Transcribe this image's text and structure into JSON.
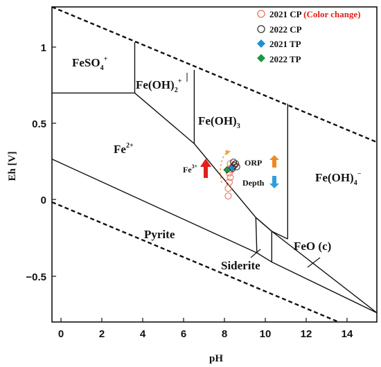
{
  "axes": {
    "xlabel": "pH",
    "ylabel": "Eh [V]",
    "xlim": [
      -0.3,
      15
    ],
    "ylim": [
      -0.8,
      1.25
    ],
    "x_ticks": [
      "0",
      "2",
      "4",
      "6",
      "8",
      "10",
      "12",
      "14"
    ],
    "y_ticks": [
      "1",
      "0.5",
      "0",
      "−0.5"
    ]
  },
  "fields": {
    "feso4": "FeSO",
    "feso4_sub": "4",
    "feso4_sup": "+",
    "feoh2": "Fe(OH)",
    "feoh2_sub": "2",
    "feoh2_sup": "+",
    "fe2": "Fe",
    "fe2_sup": "2+",
    "feoh3": "Fe(OH)",
    "feoh3_sub": "3",
    "feoh4": "Fe(OH)",
    "feoh4_sub": "4",
    "feoh4_sup": "−",
    "pyrite": "Pyrite",
    "siderite": "Siderite",
    "feo": "FeO (c)",
    "fe3": "Fe",
    "fe3_sup": "3+",
    "orp": "ORP",
    "depth": "Depth"
  },
  "legend": [
    {
      "label": "2021 CP",
      "note": " (Color change)",
      "marker": "circle",
      "color": "#e8735a"
    },
    {
      "label": "2022 CP",
      "note": "",
      "marker": "circle",
      "color": "#333333"
    },
    {
      "label": "2021 TP",
      "note": "",
      "marker": "diamond",
      "color": "#1f8fd6"
    },
    {
      "label": "2022 TP",
      "note": "",
      "marker": "diamond",
      "color": "#1a9a3c"
    }
  ],
  "colors": {
    "note": "#e0201a",
    "fe3_arrow": "#e0201a",
    "orp_arrow": "#f08a20",
    "depth_arrow": "#2f9ee0",
    "orange_trail": "#f0a040"
  },
  "chart_data": {
    "type": "scatter",
    "series": [
      {
        "name": "2021 CP",
        "marker": "open-circle",
        "color": "#e8735a",
        "points": [
          [
            8.0,
            0.02
          ],
          [
            8.0,
            0.07
          ],
          [
            8.05,
            0.11
          ],
          [
            8.1,
            0.14
          ],
          [
            8.05,
            0.17
          ],
          [
            8.15,
            0.19
          ],
          [
            8.2,
            0.21
          ],
          [
            8.25,
            0.22
          ],
          [
            8.1,
            0.23
          ]
        ]
      },
      {
        "name": "2022 CP",
        "marker": "open-circle",
        "color": "#333333",
        "points": [
          [
            8.2,
            0.2
          ],
          [
            8.3,
            0.22
          ],
          [
            8.35,
            0.23
          ],
          [
            8.25,
            0.24
          ],
          [
            8.4,
            0.21
          ]
        ]
      },
      {
        "name": "2021 TP",
        "marker": "diamond",
        "color": "#1f8fd6",
        "points": [
          [
            8.15,
            0.2
          ]
        ]
      },
      {
        "name": "2022 TP",
        "marker": "diamond",
        "color": "#1a9a3c",
        "points": [
          [
            7.95,
            0.19
          ]
        ]
      }
    ],
    "boundaries": [
      {
        "id": "water-upper",
        "dashed": true,
        "points": [
          [
            -0.3,
            1.25
          ],
          [
            15,
            0.37
          ]
        ]
      },
      {
        "id": "water-lower",
        "dashed": true,
        "points": [
          [
            -0.3,
            -0.02
          ],
          [
            13.2,
            -0.8
          ]
        ]
      },
      {
        "id": "feso4-top",
        "points": [
          [
            -0.3,
            0.69
          ],
          [
            3.6,
            0.69
          ]
        ]
      },
      {
        "id": "feso4-right",
        "points": [
          [
            3.6,
            0.69
          ],
          [
            3.6,
            1.02
          ]
        ]
      },
      {
        "id": "fe2-upper",
        "points": [
          [
            3.6,
            0.69
          ],
          [
            6.4,
            0.36
          ],
          [
            9.3,
            -0.12
          ],
          [
            10.05,
            -0.21
          ],
          [
            15,
            -0.74
          ]
        ]
      },
      {
        "id": "feoh2-right",
        "points": [
          [
            6.4,
            0.36
          ],
          [
            6.4,
            0.84
          ]
        ]
      },
      {
        "id": "feoh3-right",
        "points": [
          [
            10.8,
            -0.26
          ],
          [
            10.8,
            0.62
          ]
        ]
      },
      {
        "id": "pyrite-upper",
        "points": [
          [
            -0.3,
            0.26
          ],
          [
            9.35,
            -0.35
          ]
        ]
      },
      {
        "id": "siderite-top",
        "points": [
          [
            9.3,
            -0.12
          ],
          [
            10.05,
            -0.21
          ],
          [
            10.8,
            -0.26
          ]
        ]
      },
      {
        "id": "siderite-left",
        "points": [
          [
            9.3,
            -0.12
          ],
          [
            9.35,
            -0.35
          ]
        ]
      },
      {
        "id": "siderite-right",
        "points": [
          [
            10.05,
            -0.21
          ],
          [
            10.05,
            -0.41
          ]
        ]
      },
      {
        "id": "siderite-bottom",
        "points": [
          [
            9.35,
            -0.35
          ],
          [
            10.05,
            -0.41
          ],
          [
            15,
            -0.74
          ]
        ]
      }
    ]
  }
}
